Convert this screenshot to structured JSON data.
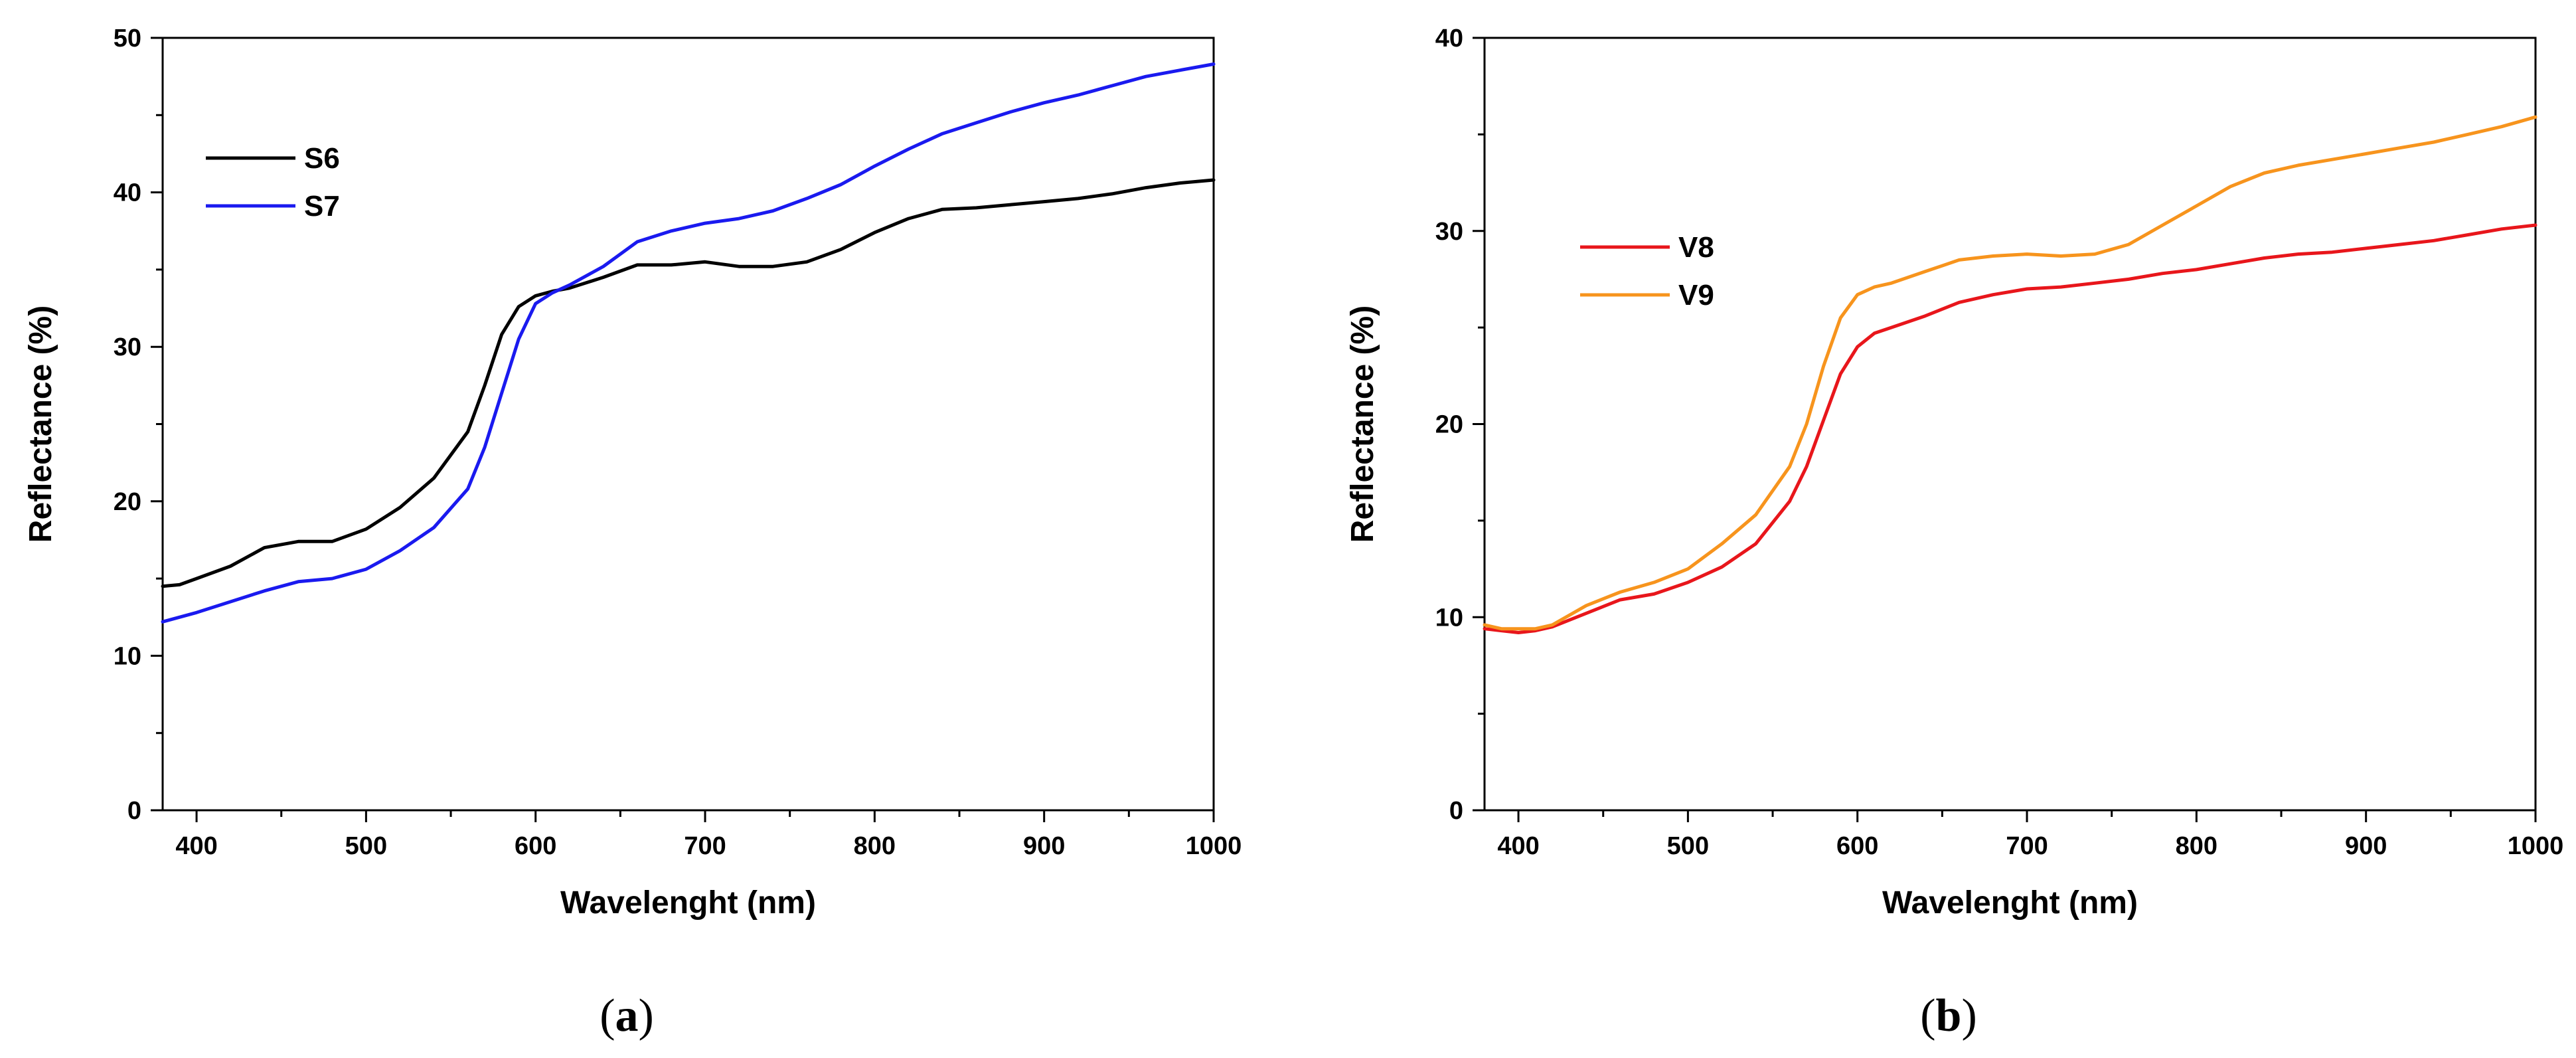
{
  "chart_data": [
    {
      "type": "line",
      "panel": "a",
      "xlabel": "Wavelenght (nm)",
      "ylabel": "Reflectance (%)",
      "xlim": [
        380,
        1000
      ],
      "ylim": [
        0,
        50
      ],
      "xticks": [
        400,
        500,
        600,
        700,
        800,
        900,
        1000
      ],
      "yticks": [
        0,
        10,
        20,
        30,
        40,
        50
      ],
      "legend_position": "top-left",
      "series": [
        {
          "name": "S6",
          "color": "#000000",
          "x": [
            380,
            390,
            400,
            420,
            440,
            460,
            480,
            500,
            520,
            540,
            560,
            570,
            580,
            590,
            600,
            610,
            620,
            640,
            660,
            670,
            680,
            700,
            720,
            740,
            760,
            780,
            800,
            820,
            840,
            860,
            880,
            900,
            920,
            940,
            960,
            980,
            1000
          ],
          "values": [
            14.5,
            14.6,
            15.0,
            15.8,
            17.0,
            17.4,
            17.4,
            18.2,
            19.6,
            21.5,
            24.5,
            27.5,
            30.8,
            32.6,
            33.3,
            33.6,
            33.8,
            34.5,
            35.3,
            35.3,
            35.3,
            35.5,
            35.2,
            35.2,
            35.5,
            36.3,
            37.4,
            38.3,
            38.9,
            39.0,
            39.2,
            39.4,
            39.6,
            39.9,
            40.3,
            40.6,
            40.8
          ]
        },
        {
          "name": "S7",
          "color": "#1a1aef",
          "x": [
            380,
            400,
            420,
            440,
            460,
            480,
            500,
            520,
            540,
            560,
            570,
            580,
            590,
            600,
            610,
            620,
            640,
            660,
            680,
            700,
            720,
            740,
            760,
            780,
            800,
            820,
            840,
            860,
            880,
            900,
            920,
            940,
            960,
            980,
            1000
          ],
          "values": [
            12.2,
            12.8,
            13.5,
            14.2,
            14.8,
            15.0,
            15.6,
            16.8,
            18.3,
            20.8,
            23.5,
            27.0,
            30.5,
            32.8,
            33.5,
            34.0,
            35.2,
            36.8,
            37.5,
            38.0,
            38.3,
            38.8,
            39.6,
            40.5,
            41.7,
            42.8,
            43.8,
            44.5,
            45.2,
            45.8,
            46.3,
            46.9,
            47.5,
            47.9,
            48.3
          ]
        }
      ]
    },
    {
      "type": "line",
      "panel": "b",
      "xlabel": "Wavelenght (nm)",
      "ylabel": "Reflectance (%)",
      "xlim": [
        380,
        1000
      ],
      "ylim": [
        0,
        40
      ],
      "xticks": [
        400,
        500,
        600,
        700,
        800,
        900,
        1000
      ],
      "yticks": [
        0,
        10,
        20,
        30,
        40
      ],
      "legend_position": "middle-left",
      "series": [
        {
          "name": "V8",
          "color": "#e8161b",
          "x": [
            380,
            390,
            400,
            410,
            420,
            440,
            460,
            480,
            500,
            520,
            540,
            560,
            570,
            580,
            590,
            600,
            610,
            620,
            640,
            660,
            680,
            700,
            720,
            740,
            760,
            780,
            800,
            820,
            840,
            860,
            880,
            900,
            920,
            940,
            960,
            980,
            1000
          ],
          "values": [
            9.4,
            9.3,
            9.2,
            9.3,
            9.5,
            10.2,
            10.9,
            11.2,
            11.8,
            12.6,
            13.8,
            16.0,
            17.8,
            20.2,
            22.6,
            24.0,
            24.7,
            25.0,
            25.6,
            26.3,
            26.7,
            27.0,
            27.1,
            27.3,
            27.5,
            27.8,
            28.0,
            28.3,
            28.6,
            28.8,
            28.9,
            29.1,
            29.3,
            29.5,
            29.8,
            30.1,
            30.3
          ]
        },
        {
          "name": "V9",
          "color": "#f7941d",
          "x": [
            380,
            390,
            400,
            410,
            420,
            440,
            460,
            480,
            500,
            520,
            540,
            560,
            570,
            580,
            590,
            600,
            610,
            620,
            640,
            660,
            680,
            700,
            720,
            740,
            760,
            780,
            800,
            820,
            840,
            860,
            880,
            900,
            920,
            940,
            960,
            980,
            1000
          ],
          "values": [
            9.6,
            9.4,
            9.4,
            9.4,
            9.6,
            10.6,
            11.3,
            11.8,
            12.5,
            13.8,
            15.3,
            17.8,
            20.0,
            23.0,
            25.5,
            26.7,
            27.1,
            27.3,
            27.9,
            28.5,
            28.7,
            28.8,
            28.7,
            28.8,
            29.3,
            30.3,
            31.3,
            32.3,
            33.0,
            33.4,
            33.7,
            34.0,
            34.3,
            34.6,
            35.0,
            35.4,
            35.9
          ]
        }
      ]
    }
  ],
  "panel_labels": [
    {
      "open": "(",
      "letter": "a",
      "close": ")"
    },
    {
      "open": "(",
      "letter": "b",
      "close": ")"
    }
  ]
}
